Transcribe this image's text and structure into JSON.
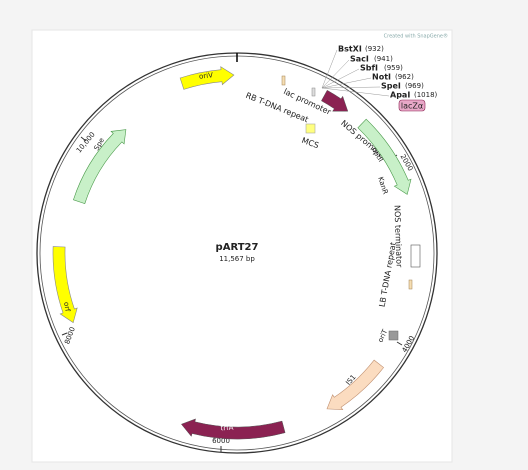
{
  "credit": "Created with SnapGene®",
  "map": {
    "name": "pART27",
    "size": "11,567 bp"
  },
  "ticks": [
    "2000",
    "4000",
    "6000",
    "8000",
    "10,000"
  ],
  "enzymes": [
    {
      "name": "BstXI",
      "position": "(932)"
    },
    {
      "name": "SacI",
      "position": "(941)"
    },
    {
      "name": "SbfI",
      "position": "(959)"
    },
    {
      "name": "NotI",
      "position": "(962)"
    },
    {
      "name": "SpeI",
      "position": "(969)"
    },
    {
      "name": "ApaI",
      "position": "(1018)"
    }
  ],
  "features": [
    {
      "label": "oriV"
    },
    {
      "label": "lac promoter"
    },
    {
      "label": "RB T-DNA repeat"
    },
    {
      "label": "MCS"
    },
    {
      "label": "lacZα"
    },
    {
      "label": "NOS promoter"
    },
    {
      "label": "nptII"
    },
    {
      "label": "KanR"
    },
    {
      "label": "NOS terminator"
    },
    {
      "label": "LB T-DNA repeat"
    },
    {
      "label": "oriT"
    },
    {
      "label": "IS1"
    },
    {
      "label": "trfA"
    },
    {
      "label": "orf"
    },
    {
      "label": "Spe"
    }
  ]
}
